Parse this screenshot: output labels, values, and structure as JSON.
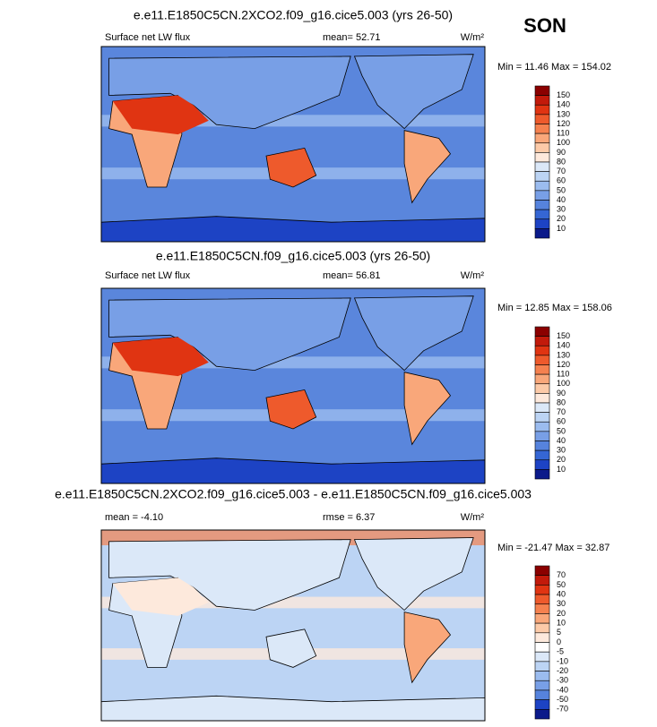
{
  "season": "SON",
  "panels": [
    {
      "title": "e.e11.E1850C5CN.2XCO2.f09_g16.cice5.003 (yrs 26-50)",
      "left": "Surface net LW flux",
      "center": "mean=  52.71",
      "units": "W/m²",
      "minmax": "Min = 11.46 Max = 154.02"
    },
    {
      "title": "e.e11.E1850C5CN.f09_g16.cice5.003 (yrs 26-50)",
      "left": "Surface net LW flux",
      "center": "mean=  56.81",
      "units": "W/m²",
      "minmax": "Min = 12.85 Max = 158.06"
    },
    {
      "title": "e.e11.E1850C5CN.2XCO2.f09_g16.cice5.003 - e.e11.E1850C5CN.f09_g16.cice5.003",
      "left": "mean =  -4.10",
      "center": "rmse =  6.37",
      "units": "W/m²",
      "minmax": "Min = -21.47 Max = 32.87"
    }
  ],
  "colorbars": [
    {
      "labels": [
        150,
        140,
        130,
        120,
        110,
        100,
        90,
        80,
        70,
        60,
        50,
        40,
        30,
        20,
        10
      ],
      "colors": [
        "#8b0000",
        "#c21a0b",
        "#e03412",
        "#ee5a2c",
        "#f5814f",
        "#f9a77a",
        "#fccaa8",
        "#fde9dc",
        "#dbe8f8",
        "#bcd4f4",
        "#9bbcef",
        "#789fe6",
        "#5683dd",
        "#3566d4",
        "#1d43c4",
        "#0b1a8a"
      ]
    },
    {
      "labels": [
        150,
        140,
        130,
        120,
        110,
        100,
        90,
        80,
        70,
        60,
        50,
        40,
        30,
        20,
        10
      ],
      "colors": [
        "#8b0000",
        "#c21a0b",
        "#e03412",
        "#ee5a2c",
        "#f5814f",
        "#f9a77a",
        "#fccaa8",
        "#fde9dc",
        "#dbe8f8",
        "#bcd4f4",
        "#9bbcef",
        "#789fe6",
        "#5683dd",
        "#3566d4",
        "#1d43c4",
        "#0b1a8a"
      ]
    },
    {
      "labels": [
        70,
        50,
        40,
        30,
        20,
        10,
        5,
        0,
        -5,
        -10,
        -20,
        -30,
        -40,
        -50,
        -70
      ],
      "colors": [
        "#8b0000",
        "#c21a0b",
        "#e03412",
        "#ee5a2c",
        "#f5814f",
        "#f9a77a",
        "#fccaa8",
        "#fde9dc",
        "#ffffff",
        "#dbe8f8",
        "#bcd4f4",
        "#9bbcef",
        "#789fe6",
        "#5683dd",
        "#1d43c4",
        "#0b1a8a"
      ]
    }
  ]
}
